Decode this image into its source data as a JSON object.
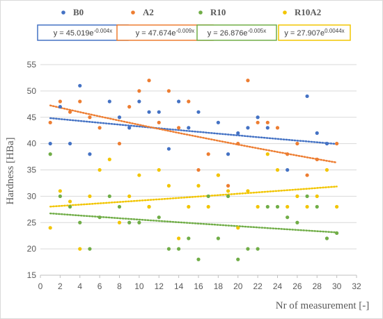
{
  "chart_data": {
    "type": "scatter",
    "xlabel": "Nr of measurement [-]",
    "ylabel": "Hardness [HBa]",
    "xlim": [
      0,
      32
    ],
    "ylim": [
      15,
      55
    ],
    "xticks": [
      0,
      2,
      4,
      6,
      8,
      10,
      12,
      14,
      16,
      18,
      20,
      22,
      24,
      26,
      28,
      30,
      32
    ],
    "yticks": [
      15,
      20,
      25,
      30,
      35,
      40,
      45,
      50,
      55
    ],
    "grid": "horizontal",
    "legend_position": "top",
    "series": [
      {
        "name": "B0",
        "color": "#4472C4",
        "trendline": {
          "label": "y = 45.019e-0.004x",
          "base": "y = 45.019e",
          "exp": "-0.004x",
          "a": 45.019,
          "b": -0.004
        },
        "points": [
          [
            1,
            40
          ],
          [
            2,
            47
          ],
          [
            3,
            40
          ],
          [
            4,
            51
          ],
          [
            5,
            38
          ],
          [
            7,
            48
          ],
          [
            8,
            45
          ],
          [
            9,
            43
          ],
          [
            10,
            48
          ],
          [
            11,
            46
          ],
          [
            12,
            46
          ],
          [
            13,
            39
          ],
          [
            14,
            48
          ],
          [
            15,
            43
          ],
          [
            16,
            46
          ],
          [
            18,
            44
          ],
          [
            19,
            38
          ],
          [
            20,
            42
          ],
          [
            21,
            43
          ],
          [
            22,
            45
          ],
          [
            23,
            43
          ],
          [
            25,
            35
          ],
          [
            27,
            49
          ],
          [
            28,
            42
          ],
          [
            29,
            40
          ]
        ]
      },
      {
        "name": "A2",
        "color": "#ED7D31",
        "trendline": {
          "label": "y = 47.674e-0.009x",
          "base": "y = 47.674e",
          "exp": "-0.009x",
          "a": 47.674,
          "b": -0.009
        },
        "points": [
          [
            1,
            44
          ],
          [
            2,
            48
          ],
          [
            3,
            46
          ],
          [
            4,
            48
          ],
          [
            5,
            45
          ],
          [
            6,
            43
          ],
          [
            8,
            40
          ],
          [
            9,
            47
          ],
          [
            10,
            50
          ],
          [
            11,
            52
          ],
          [
            12,
            44
          ],
          [
            13,
            50
          ],
          [
            14,
            43
          ],
          [
            15,
            48
          ],
          [
            16,
            35
          ],
          [
            17,
            38
          ],
          [
            18,
            34
          ],
          [
            19,
            32
          ],
          [
            20,
            40
          ],
          [
            21,
            52
          ],
          [
            22,
            44
          ],
          [
            23,
            44
          ],
          [
            24,
            43
          ],
          [
            25,
            38
          ],
          [
            26,
            40
          ],
          [
            27,
            34
          ],
          [
            28,
            37
          ],
          [
            30,
            40
          ]
        ]
      },
      {
        "name": "R10",
        "color": "#70AD47",
        "trendline": {
          "label": "y = 26.876e-0.005x",
          "base": "y = 26.876e",
          "exp": "-0.005x",
          "a": 26.876,
          "b": -0.005
        },
        "points": [
          [
            1,
            38
          ],
          [
            2,
            30
          ],
          [
            3,
            28
          ],
          [
            4,
            25
          ],
          [
            5,
            20
          ],
          [
            6,
            26
          ],
          [
            7,
            30
          ],
          [
            8,
            28
          ],
          [
            9,
            25
          ],
          [
            10,
            25
          ],
          [
            11,
            28
          ],
          [
            12,
            26
          ],
          [
            13,
            20
          ],
          [
            14,
            20
          ],
          [
            15,
            22
          ],
          [
            16,
            18
          ],
          [
            17,
            30
          ],
          [
            18,
            22
          ],
          [
            19,
            30
          ],
          [
            20,
            18
          ],
          [
            21,
            20
          ],
          [
            22,
            20
          ],
          [
            23,
            28
          ],
          [
            24,
            28
          ],
          [
            25,
            26
          ],
          [
            26,
            25
          ],
          [
            27,
            30
          ],
          [
            28,
            28
          ],
          [
            29,
            22
          ],
          [
            30,
            23
          ]
        ]
      },
      {
        "name": "R10A2",
        "color": "#F2C500",
        "trendline": {
          "label": "y = 27.907e0.0044x",
          "base": "y = 27.907e",
          "exp": "0.0044x",
          "a": 27.907,
          "b": 0.0044
        },
        "points": [
          [
            1,
            24
          ],
          [
            2,
            31
          ],
          [
            3,
            29
          ],
          [
            4,
            20
          ],
          [
            5,
            30
          ],
          [
            6,
            35
          ],
          [
            7,
            37
          ],
          [
            8,
            25
          ],
          [
            9,
            30
          ],
          [
            10,
            34
          ],
          [
            11,
            28
          ],
          [
            12,
            35
          ],
          [
            13,
            32
          ],
          [
            14,
            22
          ],
          [
            15,
            28
          ],
          [
            16,
            32
          ],
          [
            17,
            28
          ],
          [
            18,
            34
          ],
          [
            19,
            31
          ],
          [
            20,
            24
          ],
          [
            21,
            31
          ],
          [
            22,
            28
          ],
          [
            23,
            38
          ],
          [
            24,
            35
          ],
          [
            25,
            28
          ],
          [
            26,
            30
          ],
          [
            27,
            28
          ],
          [
            28,
            30
          ],
          [
            29,
            35
          ],
          [
            30,
            28
          ]
        ]
      }
    ]
  }
}
